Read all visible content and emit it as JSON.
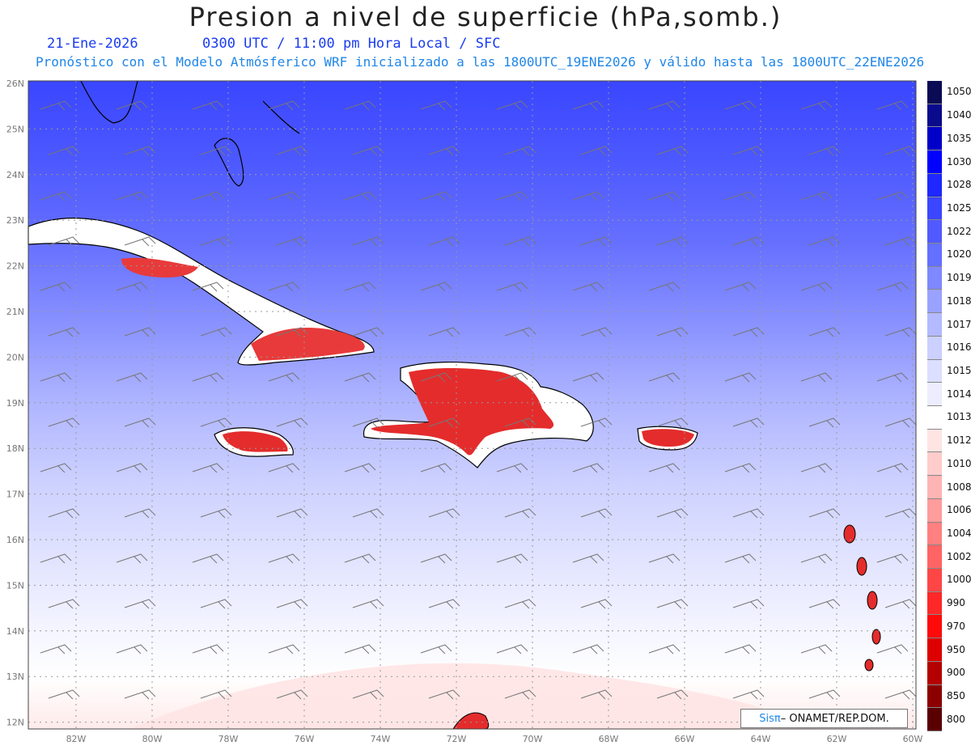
{
  "title": "Presion a nivel de superficie (hPa,somb.)",
  "date": "21-Ene-2026",
  "time_line": "0300 UTC / 11:00 pm Hora Local / SFC",
  "model_line": "Pronóstico con el Modelo Atmósferico WRF inicializado a las 1800UTC_19ENE2026 y válido hasta las  1800UTC_22ENE2026",
  "lat_labels": [
    "26N",
    "25N",
    "24N",
    "23N",
    "22N",
    "21N",
    "20N",
    "19N",
    "18N",
    "17N",
    "16N",
    "15N",
    "14N",
    "13N",
    "12N"
  ],
  "lon_labels": [
    "82W",
    "80W",
    "78W",
    "76W",
    "74W",
    "72W",
    "70W",
    "68W",
    "66W",
    "64W",
    "62W",
    "60W"
  ],
  "legend": {
    "values": [
      "1050",
      "1040",
      "1035",
      "1030",
      "1028",
      "1025",
      "1022",
      "1020",
      "1019",
      "1018",
      "1017",
      "1016",
      "1015",
      "1014",
      "1013",
      "1012",
      "1010",
      "1008",
      "1006",
      "1004",
      "1002",
      "1000",
      "990",
      "970",
      "950",
      "900",
      "850",
      "800"
    ],
    "colors": [
      "#0a0a55",
      "#0a0a8c",
      "#0000c8",
      "#0000ff",
      "#1e28ff",
      "#3c46ff",
      "#505aff",
      "#6470ff",
      "#7e88ff",
      "#9aa2ff",
      "#b4baff",
      "#cbd0ff",
      "#dcdfff",
      "#eceeff",
      "#ffffff",
      "#ffe4e4",
      "#ffcccc",
      "#ffb4b4",
      "#ff9c9c",
      "#ff8080",
      "#ff6464",
      "#ff4646",
      "#ff2828",
      "#ff0a0a",
      "#dc0000",
      "#b40000",
      "#8c0000",
      "#5a0000"
    ]
  },
  "credit": {
    "brand": "Sisπ",
    "text": " – ONAMET/REP.DOM."
  }
}
